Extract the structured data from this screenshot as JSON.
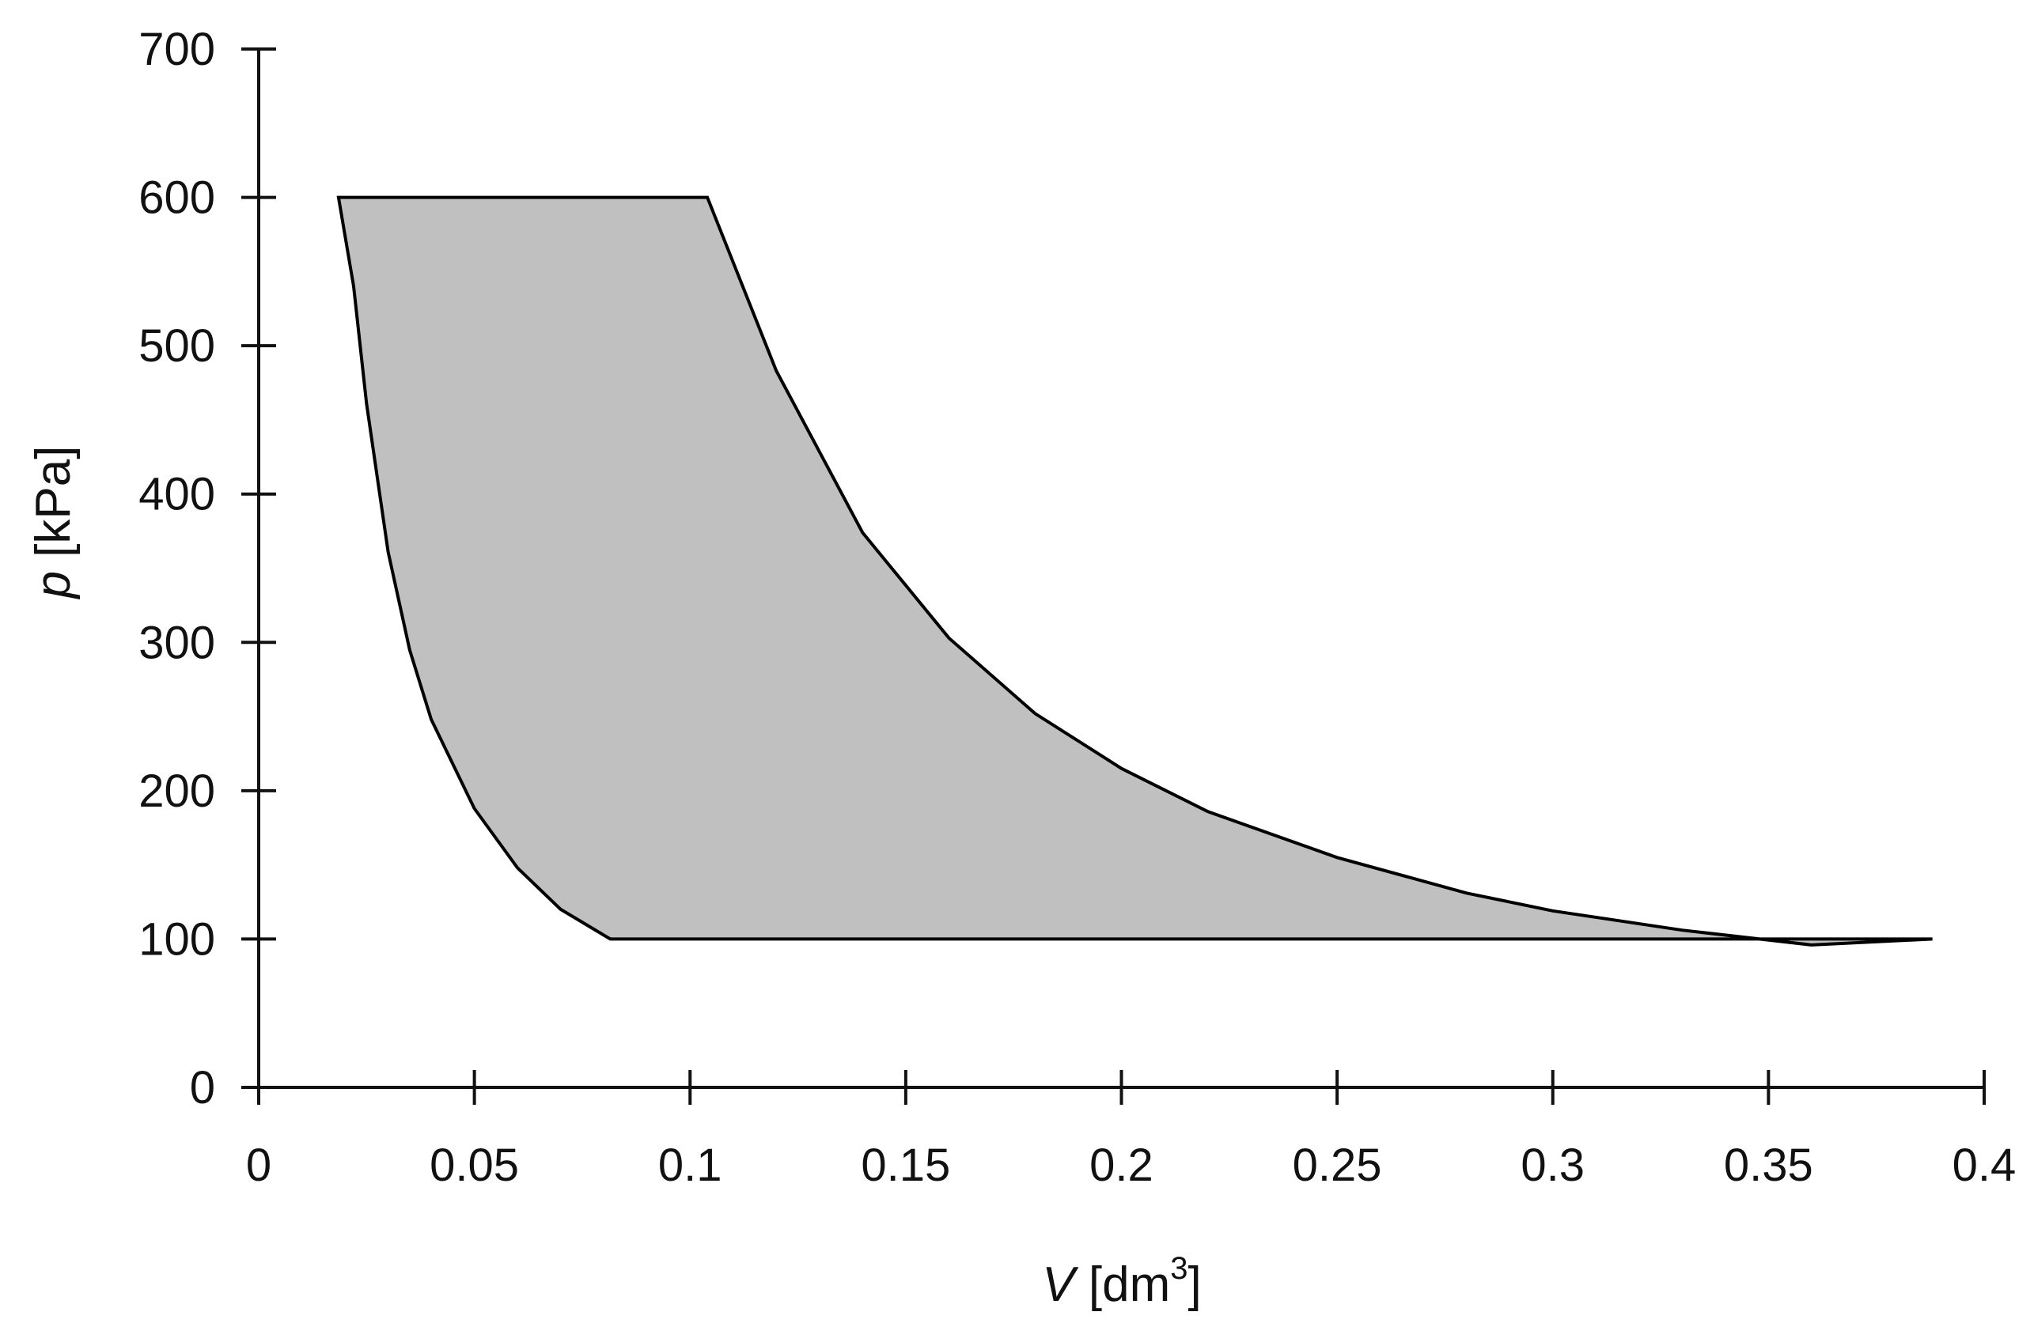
{
  "chart_data": {
    "type": "area",
    "title": "",
    "xlabel": {
      "symbol": "V",
      "unit_open": " [dm",
      "unit_power": "3",
      "unit_close": "]"
    },
    "ylabel": {
      "symbol": "p",
      "unit": " [kPa]"
    },
    "xlim": [
      0,
      0.4
    ],
    "ylim": [
      0,
      700
    ],
    "xticks": [
      "0",
      "0.05",
      "0.1",
      "0.15",
      "0.2",
      "0.25",
      "0.3",
      "0.35",
      "0.4"
    ],
    "yticks": [
      "0",
      "100",
      "200",
      "300",
      "400",
      "500",
      "600",
      "700"
    ],
    "grid": false,
    "legend": "none",
    "fill_color": "#c0c0c0",
    "line_color": "#000000",
    "series": [
      {
        "segment": "top",
        "x": [
          0.0185,
          0.104
        ],
        "y": [
          600,
          600
        ]
      },
      {
        "segment": "right-curve",
        "x": [
          0.104,
          0.12,
          0.14,
          0.16,
          0.18,
          0.2,
          0.22,
          0.25,
          0.28,
          0.3,
          0.33,
          0.36,
          0.388
        ],
        "y": [
          600,
          483,
          374,
          303,
          252,
          215,
          186,
          155,
          131,
          119,
          106,
          96,
          100
        ]
      },
      {
        "segment": "bottom",
        "x": [
          0.388,
          0.0815
        ],
        "y": [
          100,
          100
        ]
      },
      {
        "segment": "left-curve",
        "x": [
          0.0815,
          0.07,
          0.06,
          0.05,
          0.04,
          0.035,
          0.03,
          0.025,
          0.022,
          0.0185
        ],
        "y": [
          100,
          120,
          148,
          188,
          248,
          295,
          361,
          461,
          540,
          600
        ]
      }
    ]
  }
}
